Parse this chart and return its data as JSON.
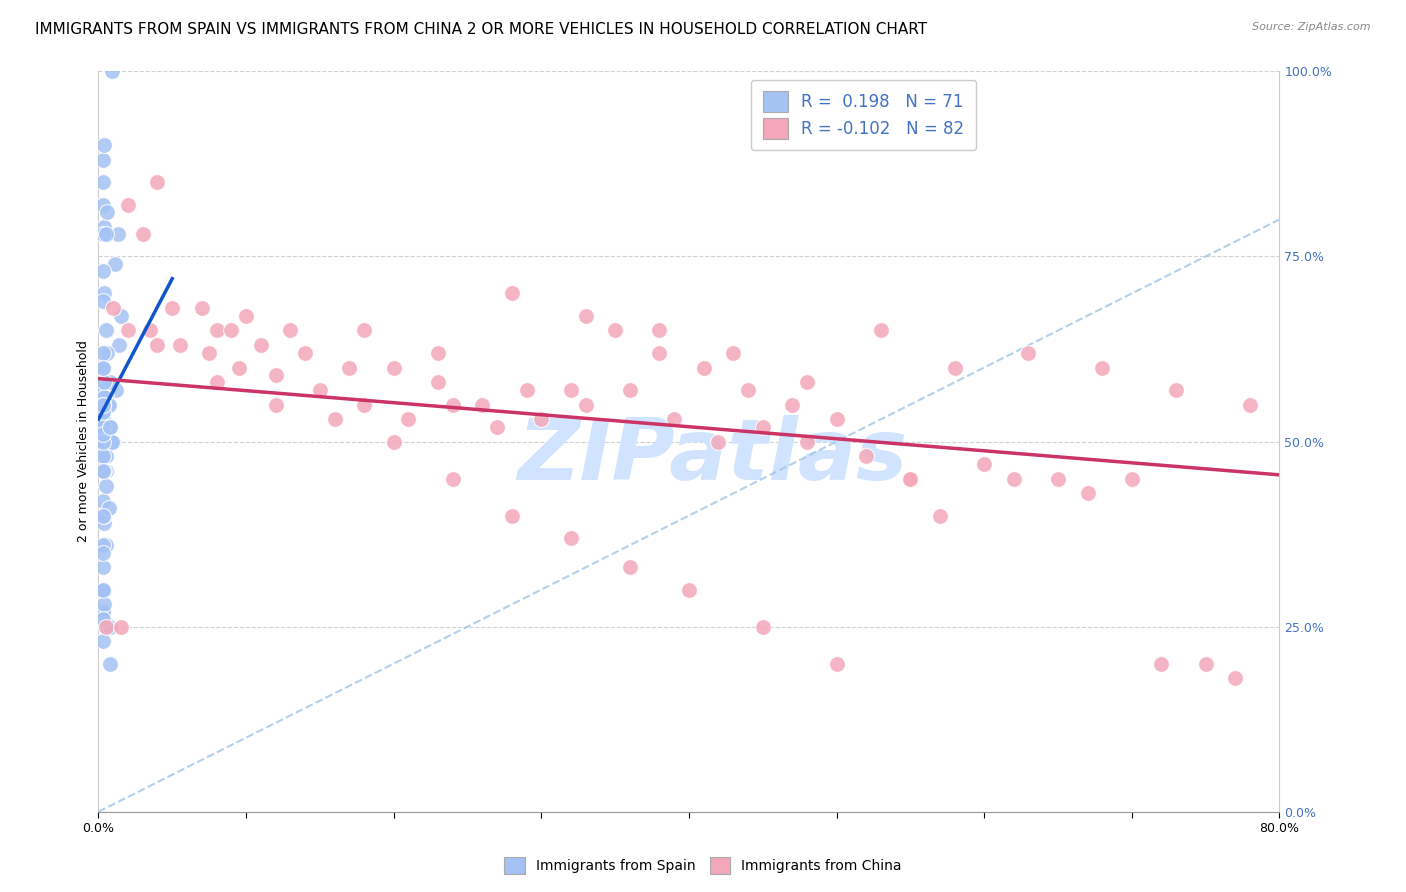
{
  "title": "IMMIGRANTS FROM SPAIN VS IMMIGRANTS FROM CHINA 2 OR MORE VEHICLES IN HOUSEHOLD CORRELATION CHART",
  "source": "Source: ZipAtlas.com",
  "ylabel": "2 or more Vehicles in Household",
  "yticks": [
    0.0,
    25.0,
    50.0,
    75.0,
    100.0
  ],
  "ytick_labels": [
    "0.0%",
    "25.0%",
    "50.0%",
    "75.0%",
    "100.0%"
  ],
  "legend_r_spain": "R =  0.198",
  "legend_n_spain": "N = 71",
  "legend_r_china": "R = -0.102",
  "legend_n_china": "N = 82",
  "spain_color": "#a4c2f4",
  "china_color": "#f4a7b9",
  "spain_line_color": "#1155cc",
  "china_line_color": "#cc3366",
  "diagonal_line_color": "#9fc5e8",
  "background_color": "#ffffff",
  "grid_color": "#cccccc",
  "watermark_text": "ZIPatlas",
  "watermark_color": "#d0e4ff",
  "spain_line": {
    "x0": 0.0,
    "x1": 5.0,
    "y0": 53.0,
    "y1": 72.0
  },
  "china_line": {
    "x0": 0.0,
    "x1": 80.0,
    "y0": 58.5,
    "y1": 45.5
  },
  "diagonal_line": {
    "x0": 0.0,
    "x1": 80.0,
    "y0": 0.0,
    "y1": 80.0
  },
  "xmin": 0,
  "xmax": 80,
  "ymin": 0,
  "ymax": 100,
  "title_fontsize": 11,
  "axis_fontsize": 9,
  "tick_fontsize": 9,
  "legend_fontsize": 12,
  "spain_x": [
    0.3,
    0.5,
    1.2,
    0.4,
    0.6,
    0.8,
    1.0,
    1.4,
    0.3,
    0.5,
    0.4,
    0.6,
    0.3,
    0.4,
    0.5,
    0.4,
    0.3,
    0.5,
    0.7,
    0.9,
    1.1,
    1.3,
    0.4,
    0.3,
    0.6,
    0.4,
    0.3,
    0.5,
    0.8,
    0.4,
    0.3,
    0.4,
    0.5,
    0.4,
    0.3,
    0.3,
    0.4,
    0.7,
    1.5,
    0.3,
    0.3,
    0.6,
    0.8,
    0.3,
    0.3,
    0.4,
    0.5,
    0.3,
    0.4,
    0.9,
    0.3,
    0.3,
    0.3,
    0.3,
    0.3,
    0.4,
    0.3,
    0.3,
    0.3,
    0.3,
    0.3,
    0.3,
    0.3,
    0.8,
    0.3,
    0.5,
    0.3,
    0.3,
    0.3,
    0.8,
    0.3
  ],
  "spain_y": [
    53,
    52,
    57,
    48,
    55,
    52,
    50,
    63,
    60,
    65,
    70,
    62,
    57,
    55,
    56,
    52,
    49,
    48,
    55,
    50,
    74,
    78,
    79,
    82,
    81,
    56,
    52,
    46,
    58,
    46,
    42,
    39,
    36,
    40,
    36,
    33,
    30,
    41,
    67,
    27,
    27,
    25,
    25,
    23,
    30,
    28,
    44,
    88,
    90,
    100,
    78,
    85,
    73,
    69,
    62,
    58,
    55,
    48,
    46,
    40,
    35,
    30,
    26,
    20,
    50,
    78,
    54,
    51,
    55,
    52,
    60
  ],
  "china_x": [
    0.5,
    1.5,
    4.0,
    8.0,
    10.0,
    13.0,
    18.0,
    23.0,
    28.0,
    33.0,
    38.0,
    43.0,
    48.0,
    53.0,
    58.0,
    63.0,
    68.0,
    73.0,
    78.0,
    2.0,
    3.0,
    5.0,
    7.0,
    9.0,
    11.0,
    14.0,
    17.0,
    20.0,
    23.0,
    26.0,
    29.0,
    32.0,
    35.0,
    38.0,
    41.0,
    44.0,
    47.0,
    50.0,
    55.0,
    60.0,
    65.0,
    70.0,
    75.0,
    1.0,
    2.0,
    3.5,
    5.5,
    7.5,
    9.5,
    12.0,
    15.0,
    18.0,
    21.0,
    24.0,
    27.0,
    30.0,
    33.0,
    36.0,
    39.0,
    42.0,
    45.0,
    48.0,
    52.0,
    57.0,
    62.0,
    67.0,
    72.0,
    77.0,
    4.0,
    8.0,
    12.0,
    16.0,
    20.0,
    24.0,
    28.0,
    32.0,
    36.0,
    40.0,
    45.0,
    50.0,
    55.0
  ],
  "china_y": [
    25,
    25,
    85,
    65,
    67,
    65,
    65,
    62,
    70,
    67,
    65,
    62,
    58,
    65,
    60,
    62,
    60,
    57,
    55,
    82,
    78,
    68,
    68,
    65,
    63,
    62,
    60,
    60,
    58,
    55,
    57,
    57,
    65,
    62,
    60,
    57,
    55,
    53,
    45,
    47,
    45,
    45,
    20,
    68,
    65,
    65,
    63,
    62,
    60,
    59,
    57,
    55,
    53,
    55,
    52,
    53,
    55,
    57,
    53,
    50,
    52,
    50,
    48,
    40,
    45,
    43,
    20,
    18,
    63,
    58,
    55,
    53,
    50,
    45,
    40,
    37,
    33,
    30,
    25,
    20,
    45
  ]
}
